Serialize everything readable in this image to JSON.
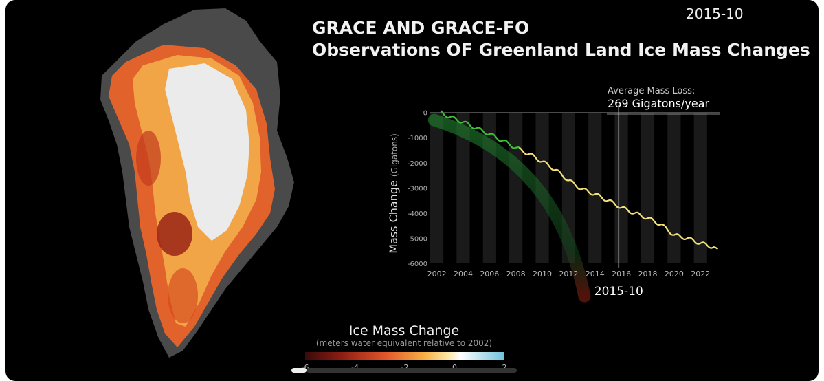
{
  "header": {
    "date": "2015-10",
    "title_line1": "GRACE AND GRACE-FO",
    "title_line2": "Observations OF Greenland Land Ice Mass Changes"
  },
  "map": {
    "subject": "Greenland"
  },
  "colors": {
    "background": "#000000",
    "trend_early": "#3fbf3a",
    "trend_late": "#f3e27a",
    "cursor": "#bbbbbb",
    "fit_arc_top": "#1e6f2a",
    "fit_arc_bottom": "#7a1a12"
  },
  "chart_data": {
    "type": "line",
    "title": "",
    "ylabel_main": "Mass Change",
    "ylabel_unit": "(Gigatons)",
    "xlabel": "",
    "current_date_label": "2015-10",
    "current_x": 2015.8,
    "annotation": {
      "line1": "Average Mass Loss:",
      "line2": "269 Gigatons/year"
    },
    "x_ticks": [
      "2002",
      "2004",
      "2006",
      "2008",
      "2010",
      "2012",
      "2014",
      "2016",
      "2018",
      "2020",
      "2022"
    ],
    "y_ticks": [
      "0",
      "-1000",
      "-2000",
      "-3000",
      "-4000",
      "-5000",
      "-6000"
    ],
    "xlim": [
      2001.5,
      2023.5
    ],
    "ylim": [
      -6000,
      100
    ],
    "grid": "alternating vertical year bands",
    "series": [
      {
        "x": [
          2002.3,
          2003.0,
          2004.0,
          2005.0,
          2006.0,
          2007.0,
          2008.0,
          2009.0,
          2010.0,
          2011.0,
          2012.0,
          2013.0,
          2014.0,
          2015.0,
          2015.8,
          2016.0,
          2017.0,
          2018.0,
          2019.0,
          2020.0,
          2021.0,
          2022.0,
          2023.0,
          2023.3
        ],
        "y": [
          0,
          -180,
          -380,
          -620,
          -860,
          -1120,
          -1400,
          -1650,
          -1950,
          -2280,
          -2700,
          -3050,
          -3250,
          -3500,
          -3720,
          -3780,
          -4000,
          -4200,
          -4450,
          -4870,
          -5000,
          -5200,
          -5350,
          -5500
        ]
      }
    ]
  },
  "legend": {
    "title": "Ice Mass Change",
    "subtitle": "(meters water equivalent relative to 2002)",
    "ticks": [
      "-6",
      "-4",
      "-2",
      "0",
      "2"
    ],
    "range": [
      -6,
      2
    ]
  }
}
